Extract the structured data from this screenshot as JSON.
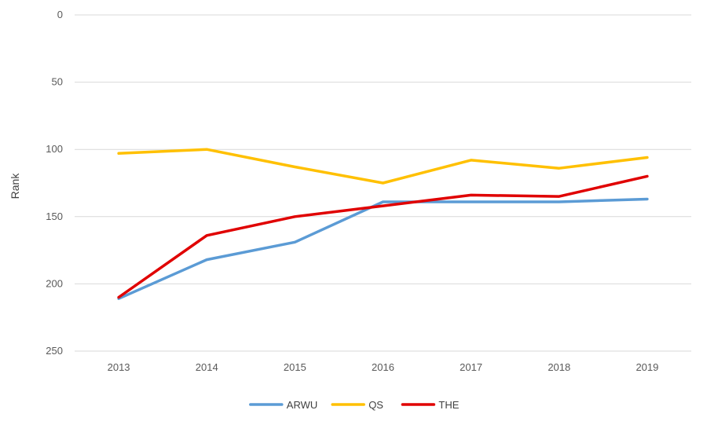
{
  "chart_data": {
    "type": "line",
    "title": "",
    "xlabel": "",
    "ylabel": "Rank",
    "x": [
      "2013",
      "2014",
      "2015",
      "2016",
      "2017",
      "2018",
      "2019"
    ],
    "ylim": [
      0,
      250
    ],
    "y_inverted": true,
    "yticks": [
      0,
      50,
      100,
      150,
      200,
      250
    ],
    "grid": "horizontal",
    "legend_position": "bottom",
    "series": [
      {
        "name": "ARWU",
        "color": "#5b9bd5",
        "values": [
          211,
          182,
          169,
          139,
          139,
          139,
          137
        ]
      },
      {
        "name": "QS",
        "color": "#ffc000",
        "values": [
          103,
          100,
          113,
          125,
          108,
          114,
          106
        ]
      },
      {
        "name": "THE",
        "color": "#e00000",
        "values": [
          210,
          164,
          150,
          142,
          134,
          135,
          120
        ]
      }
    ]
  }
}
